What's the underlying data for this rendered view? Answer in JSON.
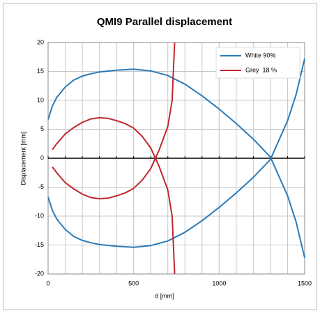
{
  "chart_data": {
    "type": "line",
    "title": "QMI9 Parallel displacement",
    "x_label": "d [mm]",
    "y_label": "Displacement [mm]",
    "xlim": [
      0,
      1500
    ],
    "xticks": [
      0,
      500,
      1000,
      1500
    ],
    "ylim": [
      -20,
      20
    ],
    "yticks": [
      -20,
      -15,
      -10,
      -5,
      0,
      5,
      10,
      15,
      20
    ],
    "grid": true,
    "legend": "upper right",
    "series": [
      {
        "name": "White 90%",
        "color": "#2b7bb9",
        "x": [
          0,
          25,
          50,
          100,
          150,
          200,
          250,
          300,
          400,
          500,
          600,
          700,
          800,
          900,
          1000,
          1100,
          1200,
          1300,
          1400,
          1450,
          1500
        ],
        "values": [
          6.7,
          9,
          10.5,
          12.3,
          13.5,
          14.2,
          14.6,
          14.9,
          15.2,
          15.4,
          15.1,
          14.3,
          12.8,
          10.8,
          8.5,
          6,
          3.3,
          0.2,
          -6.5,
          -11,
          -17.2
        ],
        "lower_values": [
          -6.7,
          -9,
          -10.5,
          -12.3,
          -13.5,
          -14.2,
          -14.6,
          -14.9,
          -15.2,
          -15.4,
          -15.1,
          -14.3,
          -12.8,
          -10.8,
          -8.5,
          -6,
          -3.3,
          -0.2,
          6.5,
          11,
          17.2
        ]
      },
      {
        "name": "Grey  18 %",
        "color": "#c0282d",
        "x": [
          25,
          50,
          100,
          150,
          200,
          250,
          300,
          350,
          400,
          450,
          500,
          550,
          600,
          650,
          700,
          725,
          740
        ],
        "values": [
          1.5,
          2.5,
          4.2,
          5.3,
          6.2,
          6.8,
          7,
          6.9,
          6.5,
          6,
          5.2,
          3.8,
          1.8,
          -1.5,
          -5.5,
          -10,
          -20
        ],
        "lower_values": [
          -1.5,
          -2.5,
          -4.2,
          -5.3,
          -6.2,
          -6.8,
          -7,
          -6.9,
          -6.5,
          -6,
          -5.2,
          -3.8,
          -1.8,
          1.5,
          5.5,
          10,
          20
        ]
      }
    ]
  }
}
